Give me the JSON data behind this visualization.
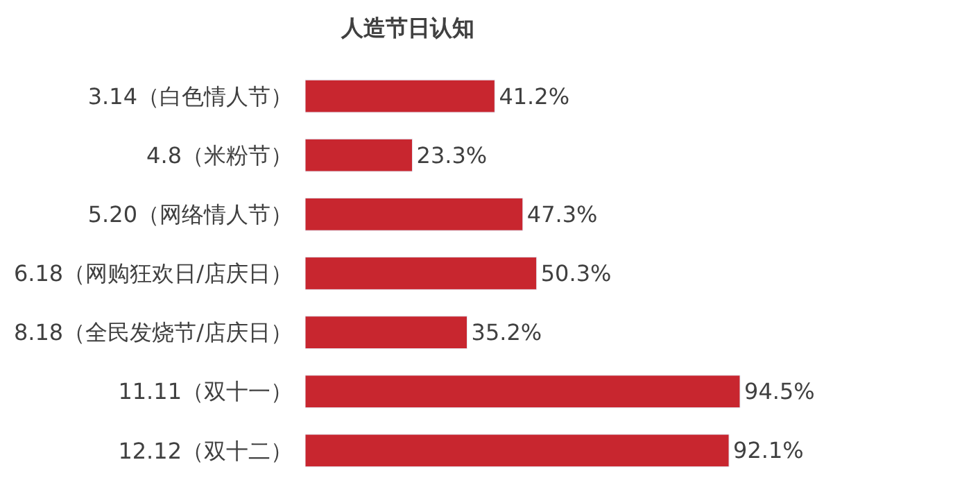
{
  "chart_data": {
    "type": "bar",
    "orientation": "horizontal",
    "title": "人造节日认知",
    "categories": [
      "3.14（白色情人节）",
      "4.8（米粉节）",
      "5.20（网络情人节）",
      "6.18（网购狂欢日/店庆日）",
      "8.18（全民发烧节/店庆日）",
      "11.11（双十一）",
      "12.12（双十二）"
    ],
    "values": [
      41.2,
      23.3,
      47.3,
      50.3,
      35.2,
      94.5,
      92.1
    ],
    "value_labels": [
      "41.2%",
      "23.3%",
      "47.3%",
      "50.3%",
      "35.2%",
      "94.5%",
      "92.1%"
    ],
    "color": "#c8262f",
    "tick_labels": "y"
  }
}
